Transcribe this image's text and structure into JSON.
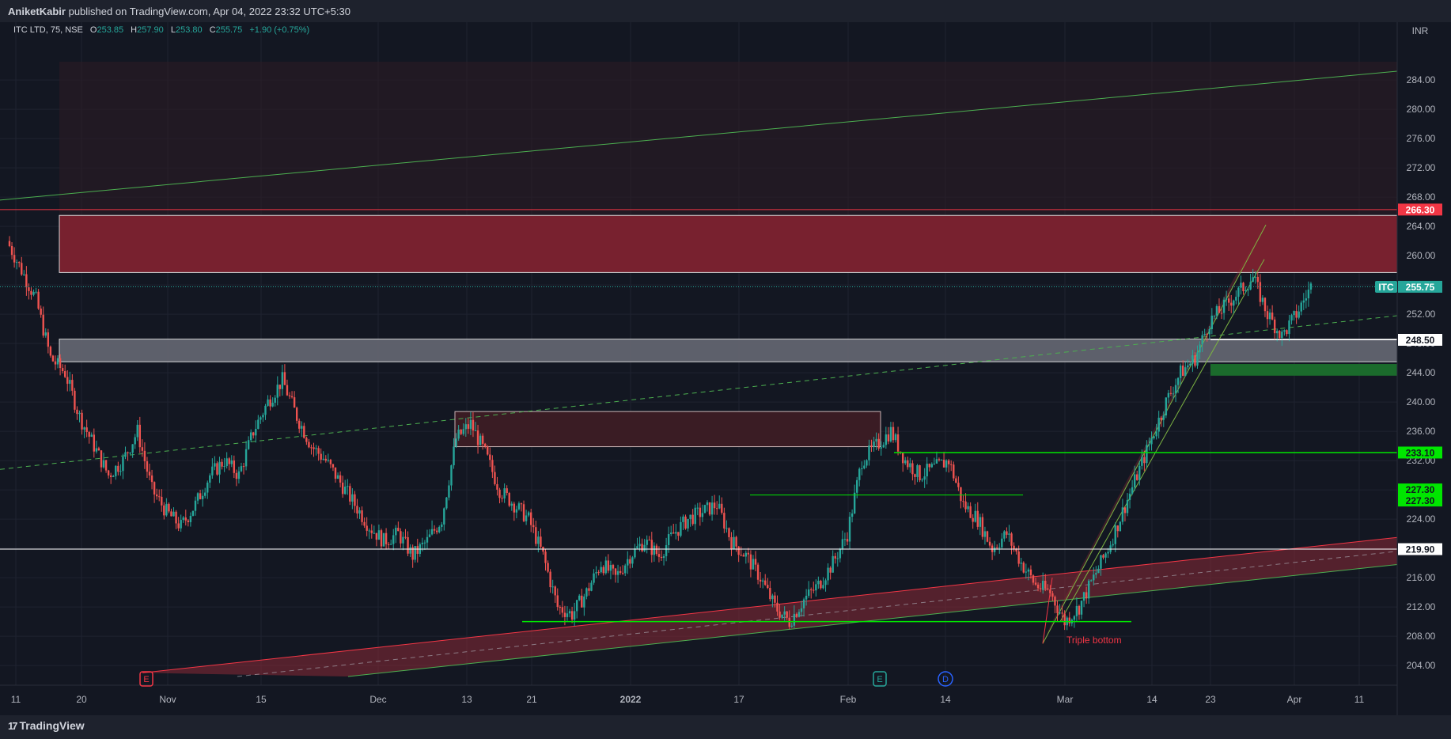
{
  "header": {
    "publisher": "AniketKabir",
    "published_text": "published on TradingView.com, Apr 04, 2022 23:32 UTC+5:30"
  },
  "footer": {
    "logo_text": "TradingView"
  },
  "legend": {
    "symbol": "ITC LTD, 75, NSE",
    "o_label": "O",
    "o_value": "253.85",
    "h_label": "H",
    "h_value": "257.90",
    "l_label": "L",
    "l_value": "253.80",
    "c_label": "C",
    "c_value": "255.75",
    "change": "+1.90 (+0.75%)"
  },
  "currency": "INR",
  "colors": {
    "background": "#131722",
    "up": "#26a69a",
    "down": "#ef5350",
    "red_zone": "#8b2a36",
    "gray_zone": "#5d5f6b",
    "green_line": "#00e600",
    "price_badge": "#26a69a",
    "red_badge": "#f23645"
  },
  "chart_data": {
    "type": "candlestick",
    "y_ticks": [
      204,
      208,
      212,
      216,
      220,
      224,
      228,
      232,
      236,
      240,
      244,
      248,
      252,
      256,
      260,
      264,
      268,
      272,
      276,
      280,
      284
    ],
    "y_tick_labels": [
      "204.00",
      "208.00",
      "212.00",
      "216.00",
      "220.00",
      "224.00",
      "228.00",
      "232.00",
      "236.00",
      "240.00",
      "244.00",
      "248.00",
      "252.00",
      "256.00",
      "260.00",
      "264.00",
      "268.00",
      "272.00",
      "276.00",
      "280.00",
      "284.00"
    ],
    "ylim": [
      202.5,
      286.5
    ],
    "x_ticks": [
      "11",
      "20",
      "Nov",
      "15",
      "Dec",
      "13",
      "21",
      "2022",
      "17",
      "Feb",
      "14",
      "Mar",
      "14",
      "23",
      "Apr",
      "11"
    ],
    "last_price": {
      "symbol_label": "ITC",
      "value": "255.75",
      "price": 255.75
    },
    "level_labels": [
      {
        "value": "266.30",
        "price": 266.3,
        "style": "red"
      },
      {
        "value": "248.50",
        "price": 248.5,
        "style": "white"
      },
      {
        "value": "233.10",
        "price": 233.1,
        "style": "green"
      },
      {
        "value": "227.30",
        "price": 227.3,
        "style": "green"
      },
      {
        "value": "227.30",
        "price": 227.3,
        "style": "green"
      },
      {
        "value": "219.90",
        "price": 219.9,
        "style": "white"
      }
    ],
    "zones": [
      {
        "kind": "resistance",
        "top": 265.5,
        "bottom": 257.7,
        "color": "red"
      },
      {
        "kind": "support",
        "top": 248.6,
        "bottom": 245.5,
        "color": "gray"
      },
      {
        "kind": "supply",
        "top": 238.7,
        "bottom": 233.9,
        "color": "darkred"
      },
      {
        "kind": "demand",
        "top": 245.2,
        "bottom": 243.6,
        "color": "green"
      }
    ],
    "horizontal_levels": [
      266.3,
      248.5,
      233.1,
      227.3,
      219.9,
      210.0
    ],
    "price_path": [
      262,
      258,
      254,
      246,
      244,
      238,
      234,
      230,
      232,
      236,
      228,
      225,
      223,
      226,
      230,
      232,
      230,
      236,
      240,
      243,
      238,
      234,
      232,
      229,
      226,
      223,
      221,
      222,
      219,
      221,
      224,
      235,
      237,
      233,
      228,
      226,
      224,
      219,
      212,
      211,
      214,
      218,
      216,
      219,
      221,
      219,
      222,
      224,
      225,
      226,
      221,
      219,
      216,
      212,
      210,
      213,
      215,
      218,
      222,
      232,
      234,
      236,
      232,
      230,
      231,
      232,
      226,
      224,
      220,
      222,
      218,
      215,
      214,
      210,
      212,
      216,
      220,
      225,
      230,
      235,
      240,
      244,
      246,
      251,
      253,
      255,
      257,
      252,
      249,
      252,
      255.75
    ],
    "annotations": [
      {
        "text": "Triple  bottom",
        "price": 207.5
      }
    ],
    "event_markers": [
      "E",
      "E",
      "D"
    ]
  }
}
